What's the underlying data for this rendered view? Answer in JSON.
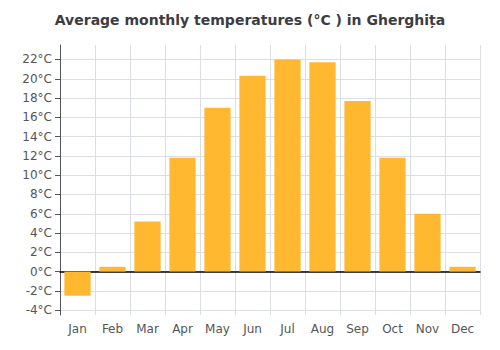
{
  "chart_data": {
    "type": "bar",
    "title": "Average monthly temperatures (°C ) in Gherghița",
    "categories": [
      "Jan",
      "Feb",
      "Mar",
      "Apr",
      "May",
      "Jun",
      "Jul",
      "Aug",
      "Sep",
      "Oct",
      "Nov",
      "Dec"
    ],
    "values": [
      -2.5,
      0.5,
      5.2,
      11.8,
      17.0,
      20.3,
      22.0,
      21.7,
      17.7,
      11.8,
      6.0,
      0.5
    ],
    "color": "#FFB830",
    "ylim": [
      -4.5,
      23.5
    ],
    "yticks": [
      {
        "value": -4,
        "label": "-4°C"
      },
      {
        "value": -2,
        "label": "-2°C"
      },
      {
        "value": 0,
        "label": "0°C"
      },
      {
        "value": 2,
        "label": "2°C"
      },
      {
        "value": 4,
        "label": "4°C"
      },
      {
        "value": 6,
        "label": "6°C"
      },
      {
        "value": 8,
        "label": "8°C"
      },
      {
        "value": 10,
        "label": "10°C"
      },
      {
        "value": 12,
        "label": "12°C"
      },
      {
        "value": 14,
        "label": "14°C"
      },
      {
        "value": 16,
        "label": "16°C"
      },
      {
        "value": 18,
        "label": "18°C"
      },
      {
        "value": 20,
        "label": "20°C"
      },
      {
        "value": 22,
        "label": "22°C"
      }
    ],
    "grid": true
  }
}
